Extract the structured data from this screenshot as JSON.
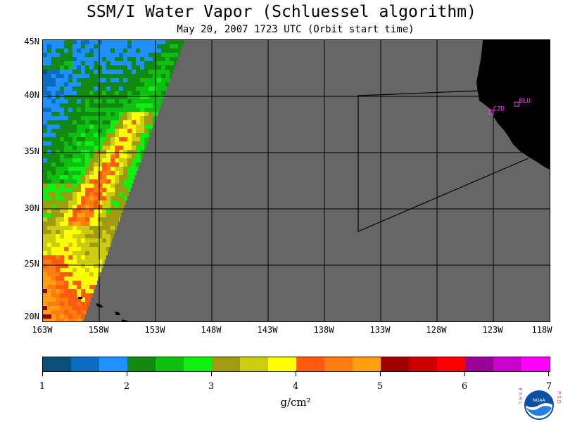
{
  "header": {
    "title": "SSM/I Water Vapor (Schluessel algorithm)",
    "subtitle": "May 20, 2007  1723 UTC  (Orbit start time)"
  },
  "map": {
    "lat_labels": [
      "45N",
      "40N",
      "35N",
      "30N",
      "25N",
      "20N"
    ],
    "lon_labels": [
      "163W",
      "158W",
      "153W",
      "148W",
      "143W",
      "138W",
      "133W",
      "128W",
      "123W",
      "118W"
    ],
    "lat_range": [
      20,
      45
    ],
    "lon_range": [
      -163,
      -118
    ],
    "background_color": "#666666",
    "land_color": "#000000",
    "stations": [
      {
        "name": "CZD",
        "lat": 38.6,
        "lon": -123.2
      },
      {
        "name": "BLU",
        "lat": 39.3,
        "lon": -120.9
      }
    ]
  },
  "colorbar": {
    "labels": [
      "1",
      "2",
      "3",
      "4",
      "5",
      "6",
      "7"
    ],
    "colors": [
      "#08507a",
      "#0a6dbf",
      "#1e90ff",
      "#128a12",
      "#0fbf0f",
      "#10f010",
      "#a09b10",
      "#cccc10",
      "#ffff00",
      "#ff5a10",
      "#ff7c10",
      "#ff9f10",
      "#a00000",
      "#cc0000",
      "#ff0000",
      "#990099",
      "#cc00cc",
      "#ff00ff"
    ],
    "units": "g/cm²"
  },
  "logo": {
    "letters_left": "ESRL",
    "letters_right": "PSD",
    "center": "NOAA"
  }
}
